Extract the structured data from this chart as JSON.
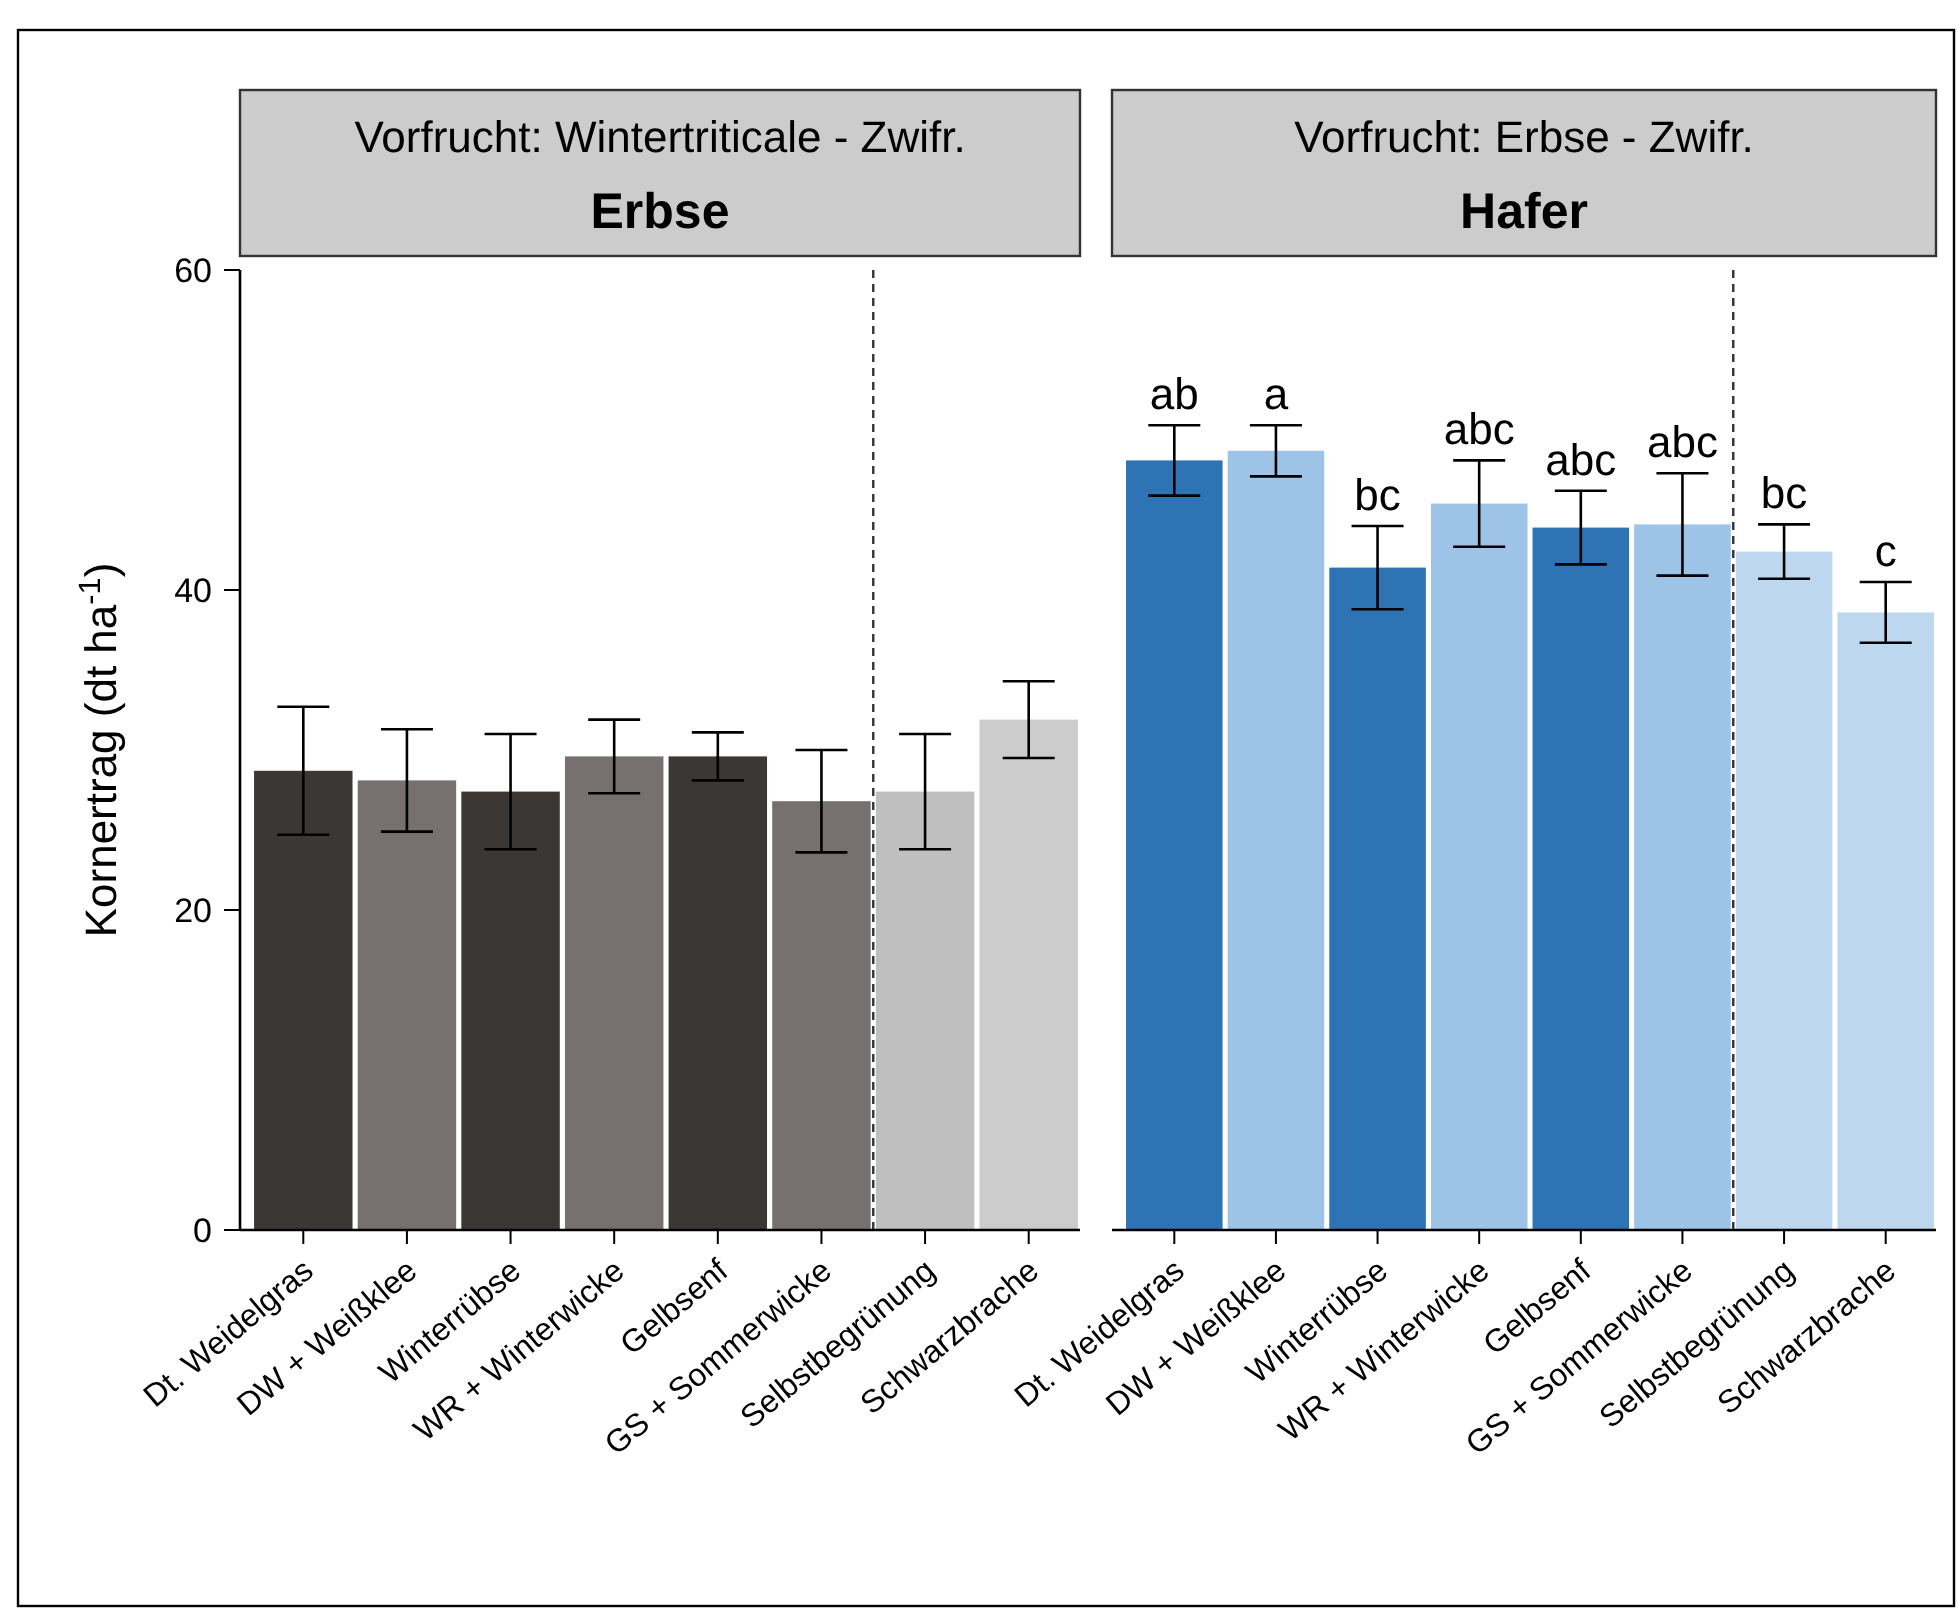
{
  "chart_data": [
    {
      "type": "bar",
      "title": "Erbse",
      "subtitle": "Vorfrucht: Wintertriticale - Zwifr.",
      "ylabel": "Kornertrag (dt ha$^{-1}$)",
      "categories": [
        "Dt. Weidelgras",
        "DW + Weißklee",
        "Winterrübse",
        "WR + Winterwicke",
        "Gelbsenf",
        "GS + Sommerwicke",
        "Selbstbegrünung",
        "Schwarzbrache"
      ],
      "values": [
        28.7,
        28.1,
        27.4,
        29.6,
        29.6,
        26.8,
        27.4,
        31.9
      ],
      "errors": [
        4.0,
        3.2,
        3.6,
        2.3,
        1.5,
        3.2,
        3.6,
        2.4
      ],
      "colors": [
        "#3a3735",
        "#767170",
        "#3a3735",
        "#767170",
        "#3a3735",
        "#767170",
        "#bfbfbf",
        "#cccccc"
      ],
      "ylim": [
        0,
        60
      ],
      "yticks": [
        0,
        20,
        40,
        60
      ]
    },
    {
      "type": "bar",
      "title": "Hafer",
      "subtitle": "Vorfrucht: Erbse - Zwifr.",
      "categories": [
        "Dt. Weidelgras",
        "DW + Weißklee",
        "Winterrübse",
        "WR + Winterwicke",
        "Gelbsenf",
        "GS + Sommerwicke",
        "Selbstbegrünung",
        "Schwarzbrache"
      ],
      "values": [
        48.1,
        48.7,
        41.4,
        45.4,
        43.9,
        44.1,
        42.4,
        38.6
      ],
      "errors": [
        2.2,
        1.6,
        2.6,
        2.7,
        2.3,
        3.2,
        1.7,
        1.9
      ],
      "value_labels": [
        "ab",
        "a",
        "bc",
        "abc",
        "abc",
        "abc",
        "bc",
        "c"
      ],
      "colors": [
        "#2e74b5",
        "#9dc3e6",
        "#2e74b5",
        "#9dc3e6",
        "#2e74b5",
        "#9dc3e6",
        "#bdd7ee",
        "#bdd7ee"
      ],
      "ylim": [
        0,
        60
      ],
      "tick_labels": "x"
    }
  ]
}
